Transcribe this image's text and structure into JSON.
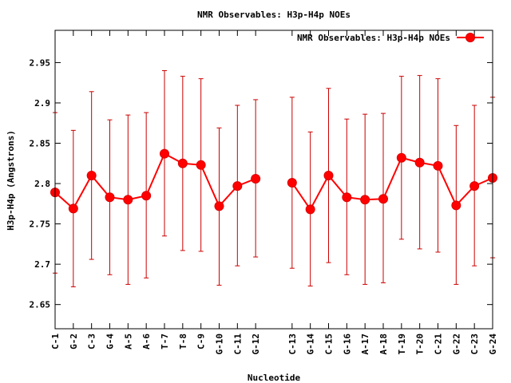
{
  "chart_data": {
    "type": "line",
    "title": "NMR Observables: H3p-H4p NOEs",
    "xlabel": "Nucleotide",
    "ylabel": "H3p-H4p (Angstrons)",
    "ylim": [
      2.62,
      2.99
    ],
    "yticks": [
      "2.65",
      "2.7",
      "2.75",
      "2.8",
      "2.85",
      "2.9",
      "2.95"
    ],
    "grid": false,
    "legend_position": "top-right",
    "colors": {
      "series": "#ff0000",
      "errorbar": "#cc0000",
      "axis": "#000000"
    },
    "categories": [
      "C-1",
      "G-2",
      "C-3",
      "G-4",
      "A-5",
      "A-6",
      "T-7",
      "T-8",
      "C-9",
      "G-10",
      "C-11",
      "G-12",
      "C-13",
      "G-14",
      "C-15",
      "G-16",
      "A-17",
      "A-18",
      "T-19",
      "T-20",
      "C-21",
      "G-22",
      "C-23",
      "G-24"
    ],
    "x": [
      1,
      2,
      3,
      4,
      5,
      6,
      7,
      8,
      9,
      10,
      11,
      12,
      14,
      15,
      16,
      17,
      18,
      19,
      20,
      21,
      22,
      23,
      24,
      25
    ],
    "xlim": [
      1,
      25
    ],
    "series": [
      {
        "name": "NMR Observables: H3p-H4p NOEs",
        "values": [
          2.789,
          2.769,
          2.81,
          2.783,
          2.78,
          2.785,
          2.837,
          2.825,
          2.823,
          2.772,
          2.797,
          2.806,
          2.801,
          2.768,
          2.81,
          2.783,
          2.78,
          2.781,
          2.832,
          2.826,
          2.822,
          2.773,
          2.797,
          2.807
        ],
        "err_low": [
          2.689,
          2.672,
          2.706,
          2.687,
          2.675,
          2.683,
          2.735,
          2.717,
          2.716,
          2.674,
          2.698,
          2.709,
          2.695,
          2.673,
          2.702,
          2.687,
          2.675,
          2.677,
          2.731,
          2.719,
          2.715,
          2.675,
          2.698,
          2.708
        ],
        "err_high": [
          2.888,
          2.866,
          2.914,
          2.879,
          2.885,
          2.888,
          2.94,
          2.933,
          2.93,
          2.869,
          2.897,
          2.904,
          2.907,
          2.864,
          2.918,
          2.88,
          2.886,
          2.887,
          2.933,
          2.934,
          2.93,
          2.872,
          2.897,
          2.907
        ]
      }
    ]
  }
}
